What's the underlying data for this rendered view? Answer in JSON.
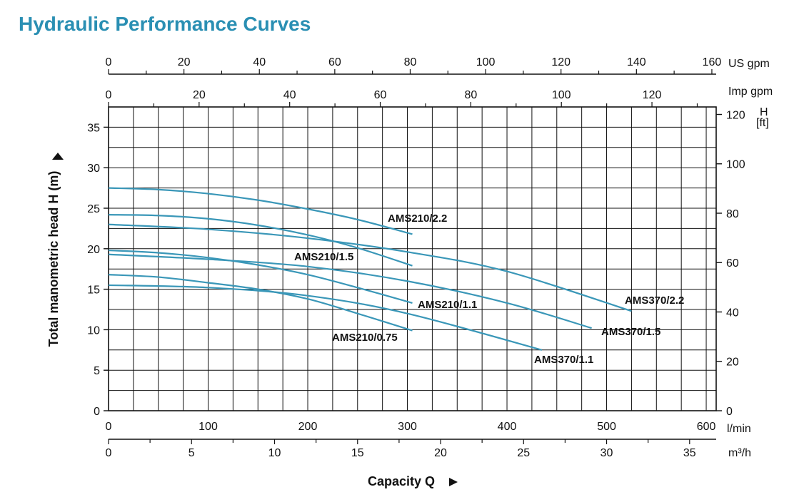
{
  "title": "Hydraulic Performance Curves",
  "chart_data": {
    "type": "line",
    "ylabel": "Total manometric head H (m)",
    "xlabel": "Capacity Q",
    "ylim": [
      0,
      37.5
    ],
    "xlim_lpm": [
      0,
      610
    ],
    "grid": true,
    "axes": {
      "left_m": {
        "ticks": [
          0,
          5,
          10,
          15,
          20,
          25,
          30,
          35
        ]
      },
      "right_ft": {
        "ticks": [
          0,
          20,
          40,
          60,
          80,
          100,
          120
        ],
        "unit": "H [ft]",
        "unit_top": "H",
        "unit_bottom": "[ft]"
      },
      "bottom_lpm": {
        "ticks": [
          0,
          100,
          200,
          300,
          400,
          500,
          600
        ],
        "unit": "l/min"
      },
      "bottom_m3h": {
        "ticks": [
          0,
          5,
          10,
          15,
          20,
          25,
          30,
          35
        ],
        "unit": "m³/h"
      },
      "top_usgpm": {
        "ticks": [
          0,
          20,
          40,
          60,
          80,
          100,
          120,
          140,
          160
        ],
        "unit": "US gpm"
      },
      "top_impgpm": {
        "ticks": [
          0,
          20,
          40,
          60,
          80,
          100,
          120
        ],
        "unit": "Imp gpm"
      }
    },
    "series": [
      {
        "name": "AMS210/2.2",
        "x": [
          0,
          50,
          100,
          150,
          200,
          250,
          305
        ],
        "y": [
          27.5,
          27.3,
          26.8,
          26.0,
          24.9,
          23.6,
          21.8
        ]
      },
      {
        "name": "AMS210/1.5",
        "x": [
          0,
          50,
          100,
          150,
          200,
          250,
          305
        ],
        "y": [
          24.2,
          24.1,
          23.7,
          22.9,
          21.7,
          20.1,
          17.9
        ]
      },
      {
        "name": "AMS370/2.2",
        "x": [
          0,
          100,
          200,
          300,
          400,
          525
        ],
        "y": [
          23.0,
          22.4,
          21.3,
          19.6,
          17.2,
          12.3
        ]
      },
      {
        "name": "AMS210/1.1",
        "x": [
          0,
          50,
          100,
          150,
          200,
          250,
          305
        ],
        "y": [
          19.8,
          19.5,
          18.9,
          18.0,
          16.8,
          15.2,
          13.3
        ]
      },
      {
        "name": "AMS370/1.5",
        "x": [
          0,
          100,
          200,
          300,
          400,
          485
        ],
        "y": [
          19.3,
          18.7,
          17.8,
          16.0,
          13.3,
          10.2
        ]
      },
      {
        "name": "AMS210/0.75",
        "x": [
          0,
          50,
          100,
          150,
          200,
          250,
          305
        ],
        "y": [
          16.8,
          16.5,
          15.8,
          15.0,
          13.8,
          12.0,
          9.9
        ]
      },
      {
        "name": "AMS370/1.1",
        "x": [
          0,
          100,
          200,
          300,
          435
        ],
        "y": [
          15.5,
          15.2,
          14.2,
          12.0,
          7.5
        ]
      }
    ],
    "labels": [
      {
        "series": "AMS210/2.2",
        "text": "AMS210/2.2"
      },
      {
        "series": "AMS210/1.5",
        "text": "AMS210/1.5"
      },
      {
        "series": "AMS210/1.1",
        "text": "AMS210/1.1"
      },
      {
        "series": "AMS210/0.75",
        "text": "AMS210/0.75"
      },
      {
        "series": "AMS370/2.2",
        "text": "AMS370/2.2"
      },
      {
        "series": "AMS370/1.5",
        "text": "AMS370/1.5"
      },
      {
        "series": "AMS370/1.1",
        "text": "AMS370/1.1"
      }
    ],
    "colors": {
      "curve": "#3a97b8",
      "grid": "#111111",
      "title": "#2a8fb3"
    }
  }
}
